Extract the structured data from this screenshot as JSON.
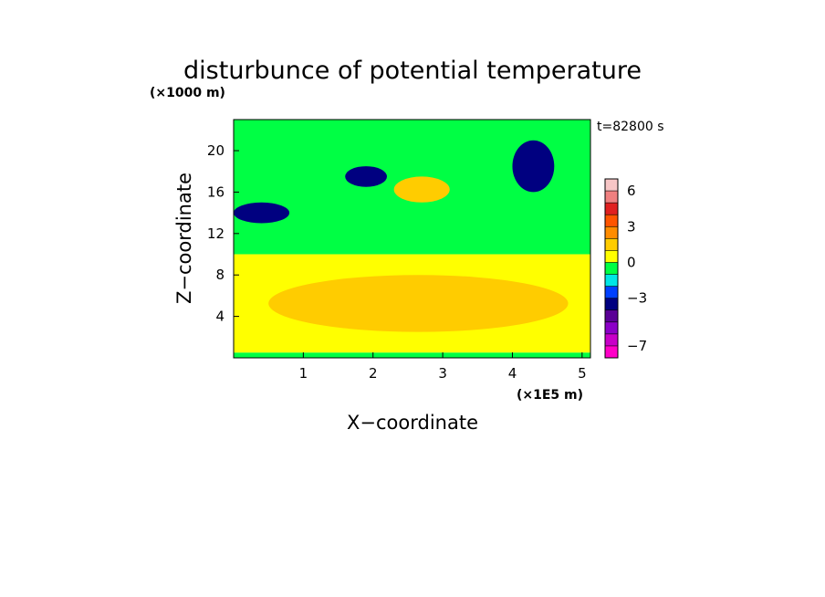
{
  "chart_data": {
    "type": "heatmap",
    "title": "disturbunce of potential temperature",
    "xlabel": "X−coordinate",
    "ylabel": "Z−coordinate",
    "x_unit": "(×1E5 m)",
    "y_unit": "(×1000 m)",
    "time_label": "t=82800 s",
    "xlim": [
      0,
      5.12
    ],
    "ylim": [
      0,
      23
    ],
    "x_ticks": [
      {
        "value": 1,
        "label": "1"
      },
      {
        "value": 2,
        "label": "2"
      },
      {
        "value": 3,
        "label": "3"
      },
      {
        "value": 4,
        "label": "4"
      },
      {
        "value": 5,
        "label": "5"
      }
    ],
    "y_ticks": [
      {
        "value": 4,
        "label": "4"
      },
      {
        "value": 8,
        "label": "8"
      },
      {
        "value": 12,
        "label": "12"
      },
      {
        "value": 16,
        "label": "16"
      },
      {
        "value": 20,
        "label": "20"
      }
    ],
    "colorbar": {
      "levels": [
        7,
        6,
        5,
        4,
        3,
        2,
        1,
        0,
        -1,
        -2,
        -3,
        -4,
        -5,
        -6,
        -7,
        -8
      ],
      "colors": [
        "#f7c6c6",
        "#f08080",
        "#e02020",
        "#ff5500",
        "#ff8c00",
        "#ffcc00",
        "#ffff00",
        "#00ff44",
        "#00e6e6",
        "#0040ff",
        "#000080",
        "#5a0096",
        "#8c00c8",
        "#c800c8",
        "#ff00c8"
      ],
      "tick_labels": [
        {
          "value": 6,
          "label": "6"
        },
        {
          "value": 3,
          "label": "3"
        },
        {
          "value": 0,
          "label": "0"
        },
        {
          "value": -3,
          "label": "−3"
        },
        {
          "value": -7,
          "label": "−7"
        }
      ]
    },
    "regions": [
      {
        "name": "upper-green-layer",
        "value": -0.5,
        "x": [
          0,
          5.12
        ],
        "z": [
          10,
          23
        ]
      },
      {
        "name": "lower-yellow-layer",
        "value": 0.5,
        "x": [
          0,
          5.12
        ],
        "z": [
          0.5,
          10
        ]
      },
      {
        "name": "lower-orange-core",
        "value": 1.5,
        "x": [
          0.5,
          4.8
        ],
        "z": [
          2.5,
          8
        ]
      },
      {
        "name": "warm-anomaly-upper-mid",
        "value": 1.5,
        "x": [
          2.3,
          3.1
        ],
        "z": [
          15,
          17.5
        ]
      },
      {
        "name": "cold-band-left",
        "value": -3.5,
        "x": [
          0,
          0.8
        ],
        "z": [
          13,
          15
        ]
      },
      {
        "name": "cold-streak-mid",
        "value": -3.5,
        "x": [
          1.6,
          2.2
        ],
        "z": [
          16.5,
          18.5
        ]
      },
      {
        "name": "cold-streak-right",
        "value": -3.5,
        "x": [
          4.0,
          4.6
        ],
        "z": [
          16,
          21
        ]
      }
    ]
  }
}
